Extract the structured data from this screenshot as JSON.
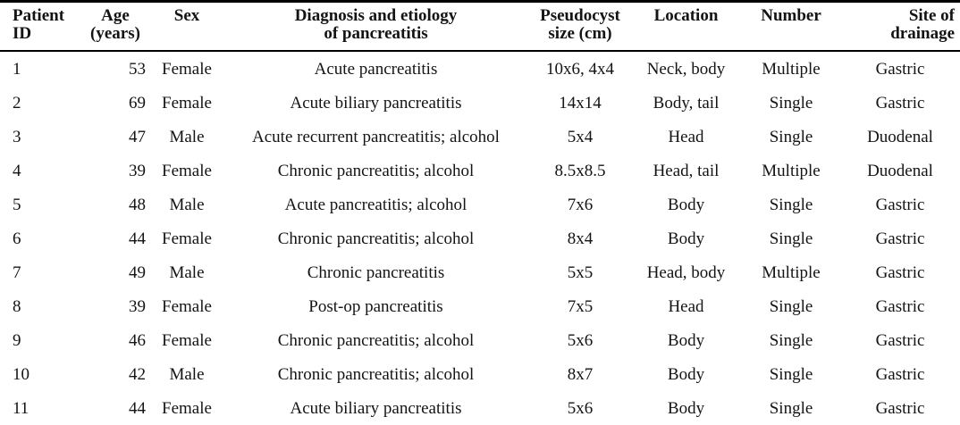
{
  "colors": {
    "background": "#ffffff",
    "text": "#141414",
    "rule": "#000000"
  },
  "table": {
    "column_keys": [
      "patient-id",
      "age",
      "sex",
      "diagnosis",
      "pseudocyst-size",
      "location",
      "number",
      "site-of-drainage"
    ],
    "columns": [
      {
        "line1": "Patient",
        "line2": "ID"
      },
      {
        "line1": "Age",
        "line2": "(years)"
      },
      {
        "line1": "Sex",
        "line2": ""
      },
      {
        "line1": "Diagnosis and etiology",
        "line2": "of pancreatitis"
      },
      {
        "line1": "Pseudocyst",
        "line2": "size (cm)"
      },
      {
        "line1": "Location",
        "line2": ""
      },
      {
        "line1": "Number",
        "line2": ""
      },
      {
        "line1": "Site of",
        "line2": "drainage"
      }
    ],
    "rows": [
      [
        "1",
        "53",
        "Female",
        "Acute pancreatitis",
        "10x6, 4x4",
        "Neck, body",
        "Multiple",
        "Gastric"
      ],
      [
        "2",
        "69",
        "Female",
        "Acute biliary pancreatitis",
        "14x14",
        "Body, tail",
        "Single",
        "Gastric"
      ],
      [
        "3",
        "47",
        "Male",
        "Acute recurrent pancreatitis; alcohol",
        "5x4",
        "Head",
        "Single",
        "Duodenal"
      ],
      [
        "4",
        "39",
        "Female",
        "Chronic pancreatitis; alcohol",
        "8.5x8.5",
        "Head, tail",
        "Multiple",
        "Duodenal"
      ],
      [
        "5",
        "48",
        "Male",
        "Acute pancreatitis; alcohol",
        "7x6",
        "Body",
        "Single",
        "Gastric"
      ],
      [
        "6",
        "44",
        "Female",
        "Chronic pancreatitis; alcohol",
        "8x4",
        "Body",
        "Single",
        "Gastric"
      ],
      [
        "7",
        "49",
        "Male",
        "Chronic pancreatitis",
        "5x5",
        "Head, body",
        "Multiple",
        "Gastric"
      ],
      [
        "8",
        "39",
        "Female",
        "Post-op pancreatitis",
        "7x5",
        "Head",
        "Single",
        "Gastric"
      ],
      [
        "9",
        "46",
        "Female",
        "Chronic pancreatitis; alcohol",
        "5x6",
        "Body",
        "Single",
        "Gastric"
      ],
      [
        "10",
        "42",
        "Male",
        "Chronic pancreatitis; alcohol",
        "8x7",
        "Body",
        "Single",
        "Gastric"
      ],
      [
        "11",
        "44",
        "Female",
        "Acute biliary pancreatitis",
        "5x6",
        "Body",
        "Single",
        "Gastric"
      ]
    ]
  }
}
